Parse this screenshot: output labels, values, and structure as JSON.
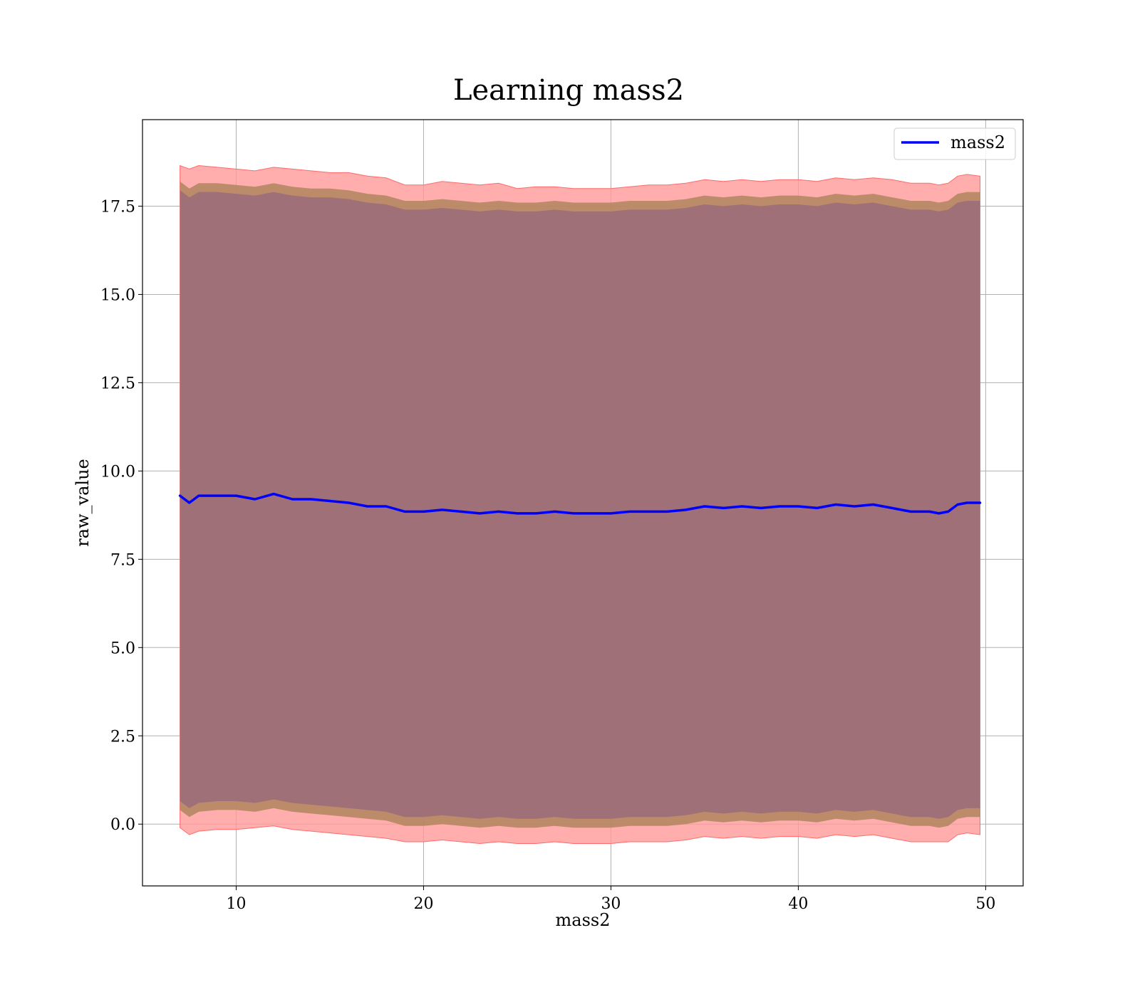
{
  "chart_data": {
    "type": "line",
    "title": "Learning mass2",
    "xlabel": "mass2",
    "ylabel": "raw_value",
    "xlim": [
      5,
      52
    ],
    "ylim": [
      -1.75,
      19.95
    ],
    "xticks": [
      "10",
      "20",
      "30",
      "40",
      "50"
    ],
    "yticks": [
      "0.0",
      "2.5",
      "5.0",
      "7.5",
      "10.0",
      "12.5",
      "15.0",
      "17.5"
    ],
    "grid": true,
    "legend": {
      "placement": "top-right",
      "entries": [
        "mass2"
      ]
    },
    "colors": {
      "line": "#0000ff",
      "band_outer": "#ff9999",
      "band_middle": "#b0855e",
      "band_inner": "#a07078",
      "grid": "#b0b0b0"
    },
    "series": [
      {
        "name": "mass2",
        "x": [
          7.0,
          7.5,
          8.0,
          9.0,
          10.0,
          11.0,
          12.0,
          13.0,
          14.0,
          15.0,
          16.0,
          17.0,
          18.0,
          19.0,
          20.0,
          21.0,
          22.0,
          23.0,
          24.0,
          25.0,
          26.0,
          27.0,
          28.0,
          29.0,
          30.0,
          31.0,
          32.0,
          33.0,
          34.0,
          35.0,
          36.0,
          37.0,
          38.0,
          39.0,
          40.0,
          41.0,
          42.0,
          43.0,
          44.0,
          45.0,
          46.0,
          47.0,
          47.5,
          48.0,
          48.5,
          49.0,
          49.7
        ],
        "values": [
          9.3,
          9.1,
          9.3,
          9.3,
          9.3,
          9.2,
          9.35,
          9.2,
          9.2,
          9.15,
          9.1,
          9.0,
          9.0,
          8.85,
          8.85,
          8.9,
          8.85,
          8.8,
          8.85,
          8.8,
          8.8,
          8.85,
          8.8,
          8.8,
          8.8,
          8.85,
          8.85,
          8.85,
          8.9,
          9.0,
          8.95,
          9.0,
          8.95,
          9.0,
          9.0,
          8.95,
          9.05,
          9.0,
          9.05,
          8.95,
          8.85,
          8.85,
          8.8,
          8.85,
          9.05,
          9.1,
          9.1
        ],
        "upper_outer": [
          18.65,
          18.55,
          18.65,
          18.6,
          18.55,
          18.5,
          18.6,
          18.55,
          18.5,
          18.45,
          18.45,
          18.35,
          18.3,
          18.1,
          18.1,
          18.2,
          18.15,
          18.1,
          18.15,
          18.0,
          18.05,
          18.05,
          18.0,
          18.0,
          18.0,
          18.05,
          18.1,
          18.1,
          18.15,
          18.25,
          18.2,
          18.25,
          18.2,
          18.25,
          18.25,
          18.2,
          18.3,
          18.25,
          18.3,
          18.25,
          18.15,
          18.15,
          18.1,
          18.15,
          18.35,
          18.4,
          18.35
        ],
        "upper_inner": [
          18.2,
          18.0,
          18.15,
          18.15,
          18.1,
          18.05,
          18.15,
          18.05,
          18.0,
          18.0,
          17.95,
          17.85,
          17.8,
          17.65,
          17.65,
          17.7,
          17.65,
          17.6,
          17.65,
          17.6,
          17.6,
          17.65,
          17.6,
          17.6,
          17.6,
          17.65,
          17.65,
          17.65,
          17.7,
          17.8,
          17.75,
          17.8,
          17.75,
          17.8,
          17.8,
          17.75,
          17.85,
          17.8,
          17.85,
          17.75,
          17.65,
          17.65,
          17.6,
          17.65,
          17.85,
          17.9,
          17.9
        ],
        "lower_outer": [
          -0.1,
          -0.3,
          -0.2,
          -0.15,
          -0.15,
          -0.1,
          -0.05,
          -0.15,
          -0.2,
          -0.25,
          -0.3,
          -0.35,
          -0.4,
          -0.5,
          -0.5,
          -0.45,
          -0.5,
          -0.55,
          -0.5,
          -0.55,
          -0.55,
          -0.5,
          -0.55,
          -0.55,
          -0.55,
          -0.5,
          -0.5,
          -0.5,
          -0.45,
          -0.35,
          -0.4,
          -0.35,
          -0.4,
          -0.35,
          -0.35,
          -0.4,
          -0.3,
          -0.35,
          -0.3,
          -0.4,
          -0.5,
          -0.5,
          -0.5,
          -0.5,
          -0.3,
          -0.25,
          -0.3
        ],
        "lower_inner": [
          0.4,
          0.2,
          0.35,
          0.4,
          0.4,
          0.35,
          0.45,
          0.35,
          0.3,
          0.25,
          0.2,
          0.15,
          0.1,
          -0.05,
          -0.05,
          0.0,
          -0.05,
          -0.1,
          -0.05,
          -0.1,
          -0.1,
          -0.05,
          -0.1,
          -0.1,
          -0.1,
          -0.05,
          -0.05,
          -0.05,
          0.0,
          0.1,
          0.05,
          0.1,
          0.05,
          0.1,
          0.1,
          0.05,
          0.15,
          0.1,
          0.15,
          0.05,
          -0.05,
          -0.05,
          -0.1,
          -0.05,
          0.15,
          0.2,
          0.2
        ]
      }
    ]
  }
}
